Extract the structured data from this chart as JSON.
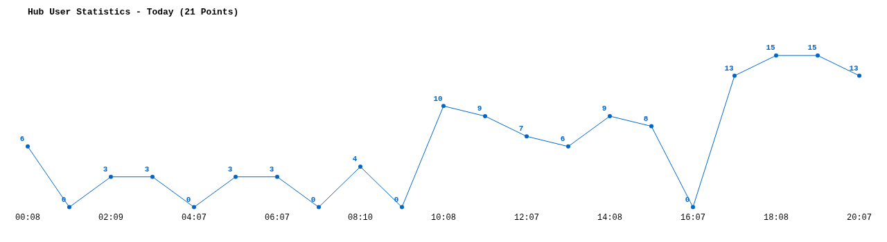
{
  "chart_data": {
    "type": "line",
    "title": "Hub User Statistics - Today (21 Points)",
    "categories": [
      "00:08",
      null,
      "02:09",
      null,
      "04:07",
      null,
      "06:07",
      null,
      "08:10",
      null,
      "10:08",
      null,
      "12:07",
      null,
      "14:08",
      null,
      "16:07",
      null,
      "18:08",
      null,
      "20:07"
    ],
    "values": [
      6,
      0,
      3,
      3,
      0,
      3,
      3,
      0,
      4,
      0,
      10,
      9,
      7,
      6,
      9,
      8,
      0,
      13,
      15,
      15,
      13
    ],
    "color": "#0066cc",
    "marker": "circle",
    "data_labels": true
  }
}
